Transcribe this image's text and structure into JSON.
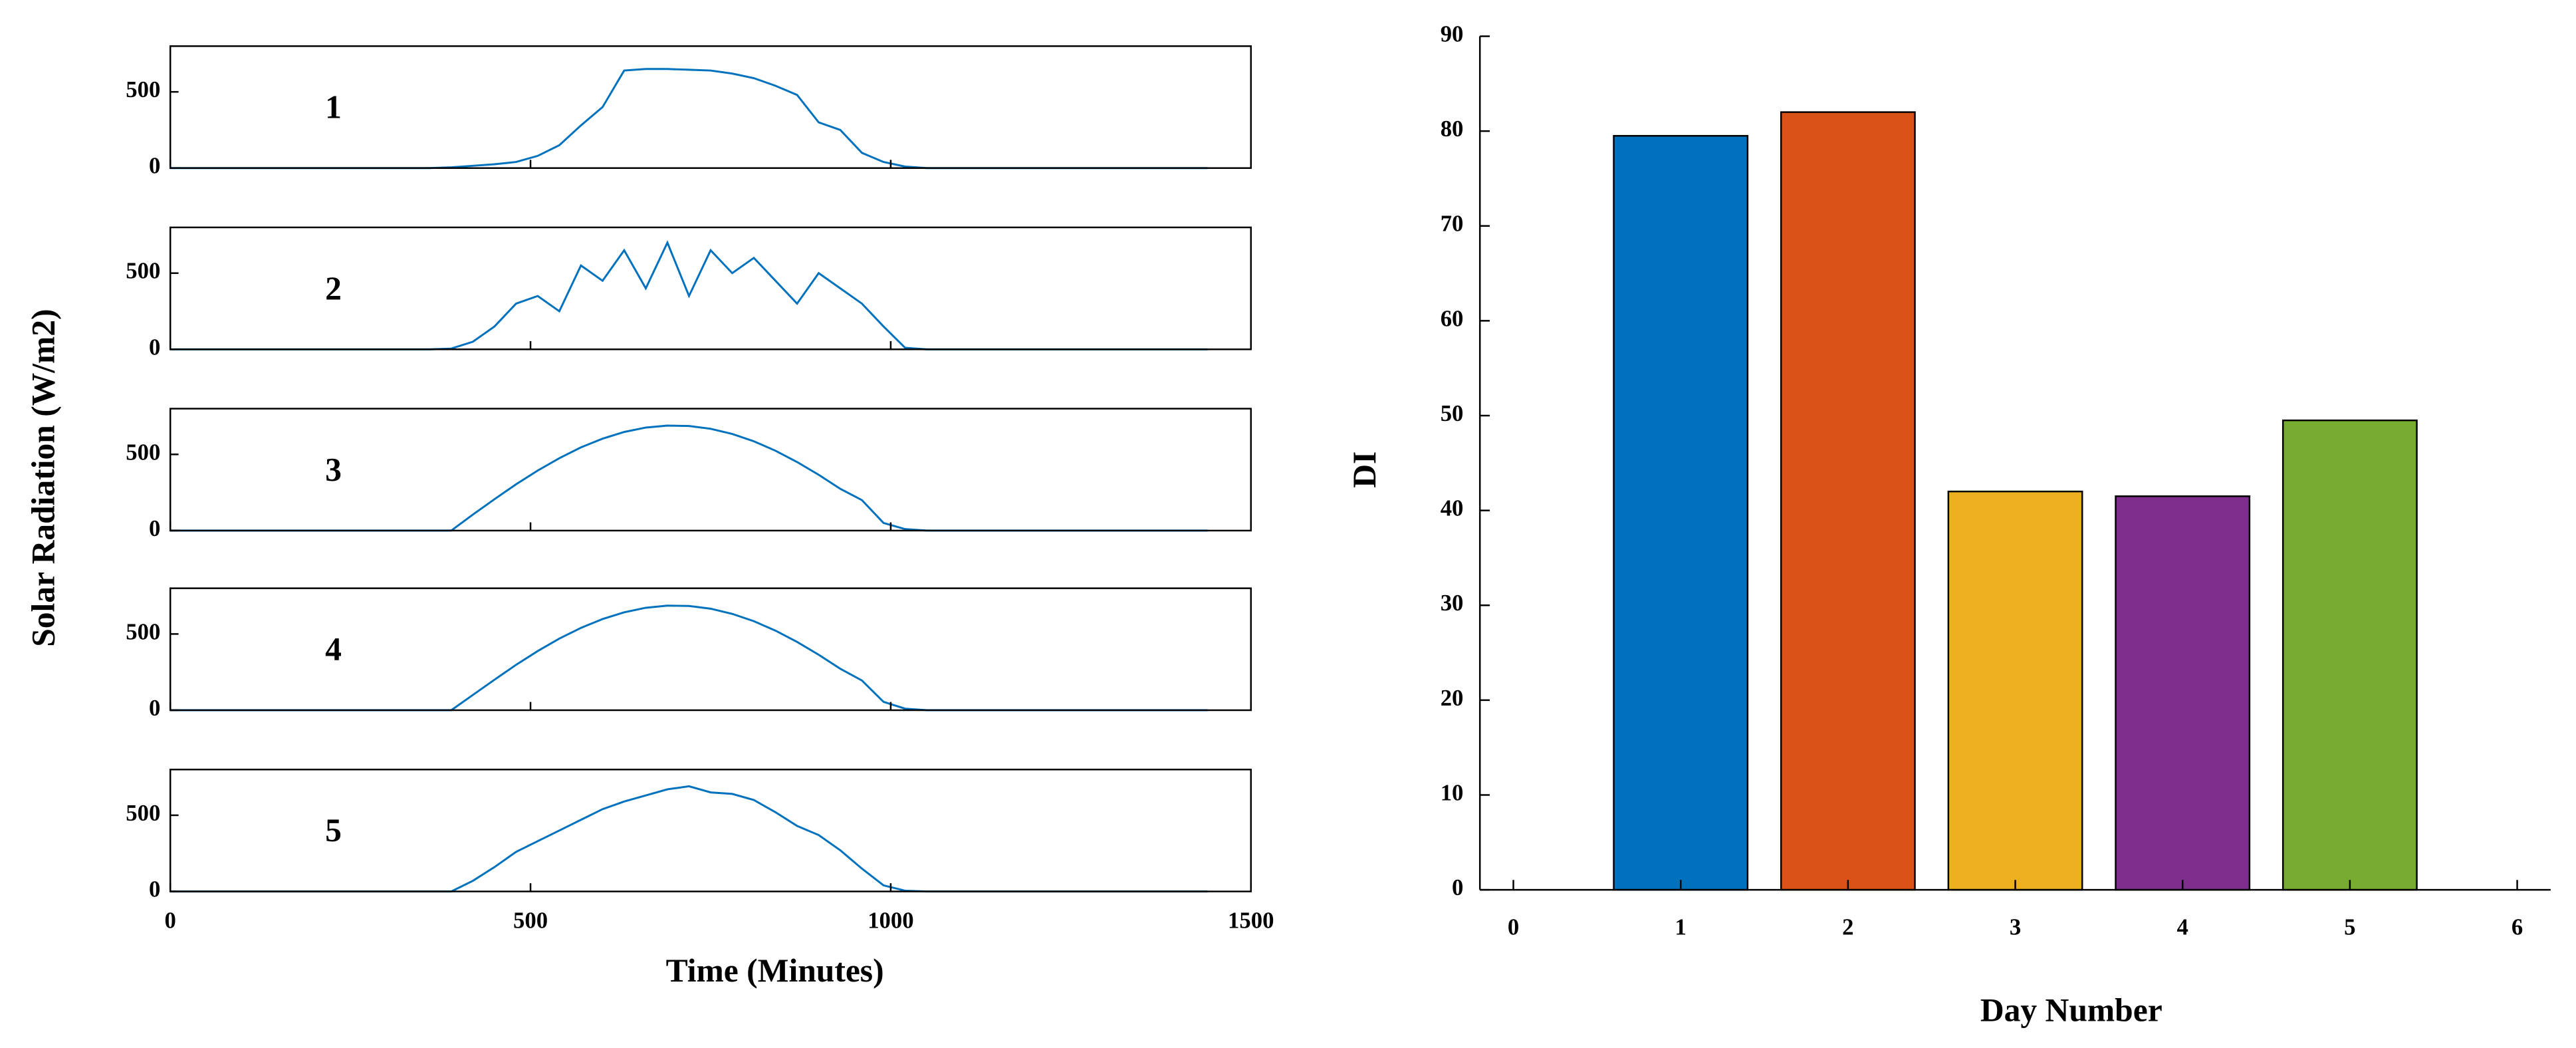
{
  "chart_data": [
    {
      "type": "line",
      "annotation": "1",
      "x": [
        0,
        30,
        60,
        90,
        120,
        150,
        180,
        210,
        240,
        270,
        300,
        330,
        360,
        390,
        420,
        450,
        480,
        510,
        540,
        570,
        600,
        630,
        660,
        690,
        720,
        750,
        780,
        810,
        840,
        870,
        900,
        930,
        960,
        990,
        1020,
        1050,
        1080,
        1110,
        1140,
        1170,
        1200,
        1230,
        1260,
        1290,
        1320,
        1350,
        1380,
        1410,
        1440
      ],
      "series": [
        {
          "color": "#0072bd",
          "values": [
            0,
            0,
            0,
            0,
            0,
            0,
            0,
            0,
            0,
            0,
            0,
            0,
            0,
            5,
            15,
            25,
            40,
            80,
            150,
            280,
            400,
            640,
            650,
            650,
            645,
            640,
            620,
            590,
            540,
            480,
            300,
            250,
            100,
            40,
            10,
            0,
            0,
            0,
            0,
            0,
            0,
            0,
            0,
            0,
            0,
            0,
            0,
            0,
            0
          ]
        }
      ],
      "xlim": [
        0,
        1500
      ],
      "xticks": [
        0,
        500,
        1000,
        1500
      ],
      "ylim": [
        0,
        800
      ],
      "yticks": [
        0,
        500
      ]
    },
    {
      "type": "line",
      "annotation": "2",
      "x": [
        0,
        30,
        60,
        90,
        120,
        150,
        180,
        210,
        240,
        270,
        300,
        330,
        360,
        390,
        420,
        450,
        480,
        510,
        540,
        570,
        600,
        630,
        660,
        690,
        720,
        750,
        780,
        810,
        840,
        870,
        900,
        930,
        960,
        990,
        1020,
        1050,
        1080,
        1110,
        1140,
        1170,
        1200,
        1230,
        1260,
        1290,
        1320,
        1350,
        1380,
        1410,
        1440
      ],
      "series": [
        {
          "color": "#0072bd",
          "values": [
            0,
            0,
            0,
            0,
            0,
            0,
            0,
            0,
            0,
            0,
            0,
            0,
            0,
            5,
            50,
            150,
            300,
            350,
            250,
            550,
            450,
            650,
            400,
            700,
            350,
            650,
            500,
            600,
            450,
            300,
            500,
            400,
            300,
            150,
            10,
            0,
            0,
            0,
            0,
            0,
            0,
            0,
            0,
            0,
            0,
            0,
            0,
            0,
            0
          ]
        }
      ],
      "xlim": [
        0,
        1500
      ],
      "xticks": [
        0,
        500,
        1000,
        1500
      ],
      "ylim": [
        0,
        800
      ],
      "yticks": [
        0,
        500
      ]
    },
    {
      "type": "line",
      "annotation": "3",
      "ylabel": "Solar Radiation (W/m2)",
      "x": [
        0,
        30,
        60,
        90,
        120,
        150,
        180,
        210,
        240,
        270,
        300,
        330,
        360,
        390,
        420,
        450,
        480,
        510,
        540,
        570,
        600,
        630,
        660,
        690,
        720,
        750,
        780,
        810,
        840,
        870,
        900,
        930,
        960,
        990,
        1020,
        1050,
        1080,
        1110,
        1140,
        1170,
        1200,
        1230,
        1260,
        1290,
        1320,
        1350,
        1380,
        1410,
        1440
      ],
      "series": [
        {
          "color": "#0072bd",
          "values": [
            0,
            0,
            0,
            0,
            0,
            0,
            0,
            0,
            0,
            0,
            0,
            0,
            0,
            0,
            105,
            206,
            304,
            394,
            475,
            546,
            603,
            647,
            676,
            689,
            686,
            668,
            634,
            586,
            524,
            450,
            366,
            274,
            200,
            50,
            10,
            0,
            0,
            0,
            0,
            0,
            0,
            0,
            0,
            0,
            0,
            0,
            0,
            0,
            0
          ]
        }
      ],
      "xlim": [
        0,
        1500
      ],
      "xticks": [
        0,
        500,
        1000,
        1500
      ],
      "ylim": [
        0,
        800
      ],
      "yticks": [
        0,
        500
      ]
    },
    {
      "type": "line",
      "annotation": "4",
      "x": [
        0,
        30,
        60,
        90,
        120,
        150,
        180,
        210,
        240,
        270,
        300,
        330,
        360,
        390,
        420,
        450,
        480,
        510,
        540,
        570,
        600,
        630,
        660,
        690,
        720,
        750,
        780,
        810,
        840,
        870,
        900,
        930,
        960,
        990,
        1020,
        1050,
        1080,
        1110,
        1140,
        1170,
        1200,
        1230,
        1260,
        1290,
        1320,
        1350,
        1380,
        1410,
        1440
      ],
      "series": [
        {
          "color": "#0072bd",
          "values": [
            0,
            0,
            0,
            0,
            0,
            0,
            0,
            0,
            0,
            0,
            0,
            0,
            0,
            0,
            100,
            200,
            298,
            388,
            470,
            540,
            598,
            642,
            672,
            686,
            684,
            666,
            632,
            584,
            522,
            448,
            364,
            272,
            195,
            55,
            10,
            0,
            0,
            0,
            0,
            0,
            0,
            0,
            0,
            0,
            0,
            0,
            0,
            0,
            0
          ]
        }
      ],
      "xlim": [
        0,
        1500
      ],
      "xticks": [
        0,
        500,
        1000,
        1500
      ],
      "ylim": [
        0,
        800
      ],
      "yticks": [
        0,
        500
      ]
    },
    {
      "type": "line",
      "annotation": "5",
      "xlabel": "Time (Minutes)",
      "x": [
        0,
        30,
        60,
        90,
        120,
        150,
        180,
        210,
        240,
        270,
        300,
        330,
        360,
        390,
        420,
        450,
        480,
        510,
        540,
        570,
        600,
        630,
        660,
        690,
        720,
        750,
        780,
        810,
        840,
        870,
        900,
        930,
        960,
        990,
        1020,
        1050,
        1080,
        1110,
        1140,
        1170,
        1200,
        1230,
        1260,
        1290,
        1320,
        1350,
        1380,
        1410,
        1440
      ],
      "series": [
        {
          "color": "#0072bd",
          "values": [
            0,
            0,
            0,
            0,
            0,
            0,
            0,
            0,
            0,
            0,
            0,
            0,
            0,
            0,
            70,
            160,
            260,
            330,
            400,
            470,
            540,
            590,
            630,
            670,
            690,
            650,
            640,
            600,
            520,
            430,
            370,
            270,
            150,
            40,
            5,
            0,
            0,
            0,
            0,
            0,
            0,
            0,
            0,
            0,
            0,
            0,
            0,
            0,
            0
          ]
        }
      ],
      "xlim": [
        0,
        1500
      ],
      "xticks": [
        0,
        500,
        1000,
        1500
      ],
      "ylim": [
        0,
        800
      ],
      "yticks": [
        0,
        500
      ]
    },
    {
      "type": "bar",
      "xlabel": "Day Number",
      "ylabel": "DI",
      "x": [
        1,
        2,
        3,
        4,
        5
      ],
      "values": [
        79.5,
        82,
        42,
        41.5,
        49.5
      ],
      "colors": [
        "#0072bd",
        "#d95319",
        "#edb120",
        "#7e2f8e",
        "#77ac30"
      ],
      "xlim": [
        -0.2,
        6.2
      ],
      "xticks": [
        0,
        1,
        2,
        3,
        4,
        5,
        6
      ],
      "ylim": [
        0,
        90
      ],
      "yticks": [
        0,
        10,
        20,
        30,
        40,
        50,
        60,
        70,
        80,
        90
      ]
    }
  ]
}
